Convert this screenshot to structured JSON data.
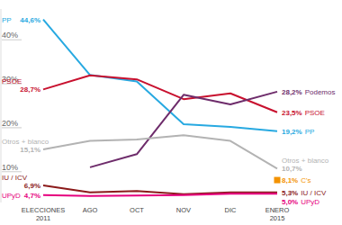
{
  "chart_data": {
    "type": "line",
    "categories": [
      "ELECCIONES 2011",
      "AGO",
      "OCT",
      "NOV",
      "DIC",
      "ENERO 2015"
    ],
    "ylim": [
      3,
      47
    ],
    "yticks": [
      {
        "value": 10,
        "label": "10%"
      },
      {
        "value": 20,
        "label": "20%"
      },
      {
        "value": 30,
        "label": "30%"
      },
      {
        "value": 40,
        "label": "40%"
      }
    ],
    "grid": false,
    "data_labels": true,
    "series": [
      {
        "name": "PP",
        "color": "#27a9e1",
        "values": [
          44.6,
          32.0,
          30.5,
          20.8,
          20.2,
          19.2
        ],
        "value_labels": [
          "44,6%",
          null,
          null,
          null,
          null,
          "19,2%"
        ]
      },
      {
        "name": "PSOE",
        "color": "#c8102e",
        "values": [
          28.7,
          31.9,
          31.0,
          26.5,
          27.8,
          23.5
        ],
        "value_labels": [
          "28,7%",
          null,
          null,
          null,
          null,
          "23,5%"
        ]
      },
      {
        "name": "Podemos",
        "color": "#6e2c6b",
        "values": [
          null,
          11.0,
          14.0,
          27.5,
          25.3,
          28.2
        ],
        "value_labels": [
          null,
          null,
          null,
          null,
          null,
          "28,2%"
        ]
      },
      {
        "name": "Otros + blanco",
        "color": "#b3b3b3",
        "values": [
          15.1,
          17.0,
          17.3,
          18.3,
          17.0,
          10.7
        ],
        "value_labels": [
          "15,1%",
          null,
          null,
          null,
          null,
          "10,7%"
        ]
      },
      {
        "name": "C's",
        "color": "#f39200",
        "marker": "square",
        "values": [
          null,
          null,
          null,
          null,
          null,
          8.1
        ],
        "value_labels": [
          null,
          null,
          null,
          null,
          null,
          "8,1%"
        ]
      },
      {
        "name": "IU / ICV",
        "color": "#8b1a1a",
        "values": [
          6.9,
          5.3,
          5.6,
          4.9,
          5.3,
          5.3
        ],
        "value_labels": [
          "6,9%",
          null,
          null,
          null,
          null,
          "5,3%"
        ]
      },
      {
        "name": "UPyD",
        "color": "#e6007e",
        "values": [
          4.7,
          4.5,
          4.6,
          4.7,
          5.0,
          5.0
        ],
        "value_labels": [
          "4,7%",
          null,
          null,
          null,
          null,
          "5,0%"
        ]
      }
    ]
  }
}
